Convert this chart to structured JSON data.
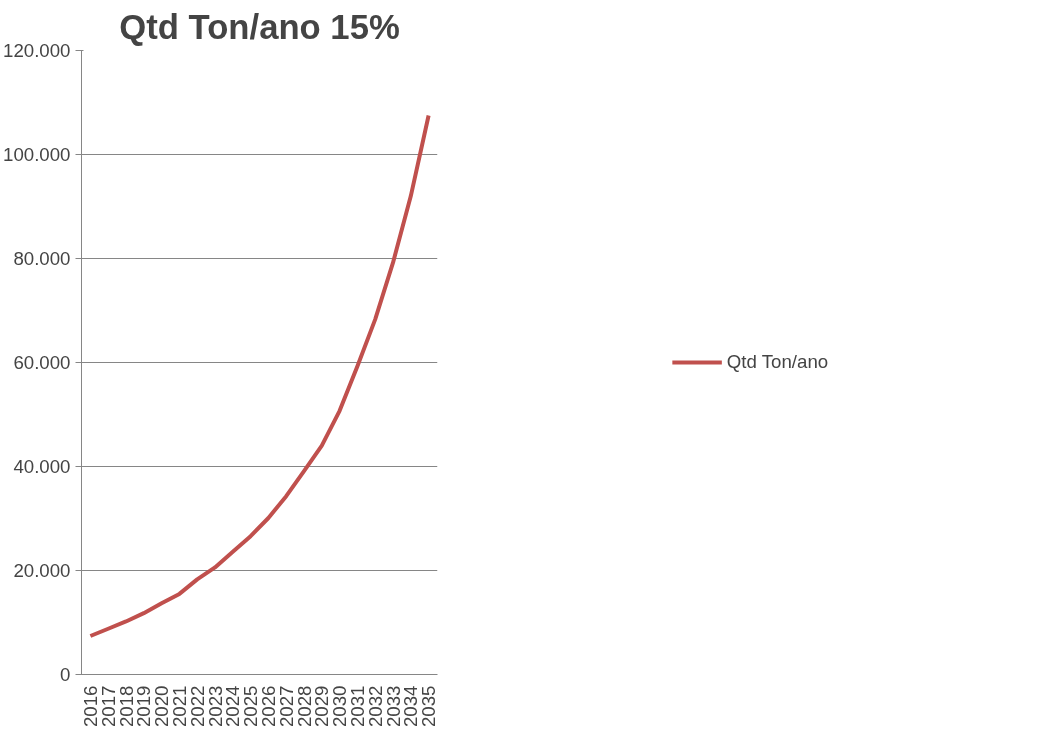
{
  "chart_data": {
    "type": "line",
    "title": "Qtd Ton/ano 15%",
    "categories": [
      "2016",
      "2017",
      "2018",
      "2019",
      "2020",
      "2021",
      "2022",
      "2023",
      "2024",
      "2025",
      "2026",
      "2027",
      "2028",
      "2029",
      "2030",
      "2031",
      "2032",
      "2033",
      "2034",
      "2035"
    ],
    "series": [
      {
        "name": "Qtd Ton/ano",
        "color": "#c0504d",
        "values": [
          7400,
          8800,
          10200,
          11800,
          13700,
          15500,
          18300,
          20600,
          23600,
          26600,
          30100,
          34300,
          39100,
          44000,
          50700,
          59300,
          68300,
          79200,
          92000,
          107500
        ]
      }
    ],
    "ylim": [
      0,
      120000
    ],
    "yticks": [
      {
        "value": 0,
        "label": "0"
      },
      {
        "value": 20000,
        "label": "20.000"
      },
      {
        "value": 40000,
        "label": "40.000"
      },
      {
        "value": 60000,
        "label": "60.000"
      },
      {
        "value": 80000,
        "label": "80.000"
      },
      {
        "value": 100000,
        "label": "100.000"
      },
      {
        "value": 120000,
        "label": "120.000"
      }
    ],
    "grid": "y",
    "legend": "right",
    "marker": "none",
    "line_style": "solid"
  }
}
